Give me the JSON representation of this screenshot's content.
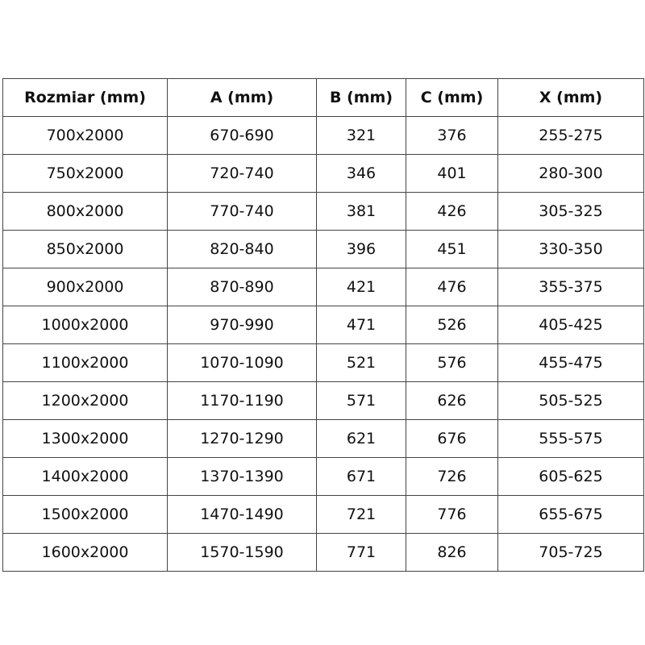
{
  "table": {
    "headers": [
      "Rozmiar (mm)",
      "A (mm)",
      "B (mm)",
      "C (mm)",
      "X (mm)"
    ],
    "rows": [
      [
        "700x2000",
        "670-690",
        "321",
        "376",
        "255-275"
      ],
      [
        "750x2000",
        "720-740",
        "346",
        "401",
        "280-300"
      ],
      [
        "800x2000",
        "770-740",
        "381",
        "426",
        "305-325"
      ],
      [
        "850x2000",
        "820-840",
        "396",
        "451",
        "330-350"
      ],
      [
        "900x2000",
        "870-890",
        "421",
        "476",
        "355-375"
      ],
      [
        "1000x2000",
        "970-990",
        "471",
        "526",
        "405-425"
      ],
      [
        "1100x2000",
        "1070-1090",
        "521",
        "576",
        "455-475"
      ],
      [
        "1200x2000",
        "1170-1190",
        "571",
        "626",
        "505-525"
      ],
      [
        "1300x2000",
        "1270-1290",
        "621",
        "676",
        "555-575"
      ],
      [
        "1400x2000",
        "1370-1390",
        "671",
        "726",
        "605-625"
      ],
      [
        "1500x2000",
        "1470-1490",
        "721",
        "776",
        "655-675"
      ],
      [
        "1600x2000",
        "1570-1590",
        "771",
        "826",
        "705-725"
      ]
    ]
  }
}
